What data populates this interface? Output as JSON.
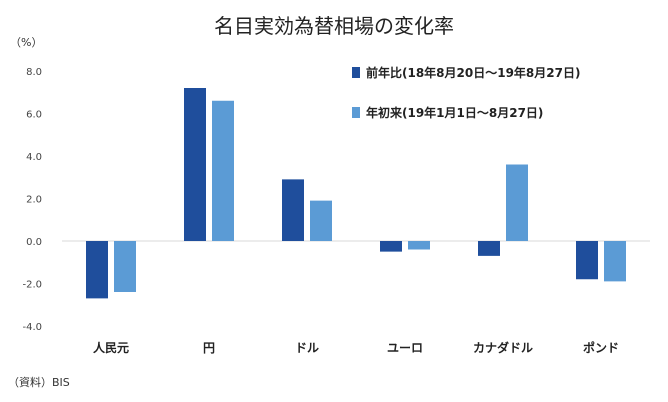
{
  "chart_data": {
    "type": "bar",
    "title": "名目実効為替相場の変化率",
    "unit": "（%）",
    "source": "（資料）BIS",
    "categories": [
      "人民元",
      "円",
      "ドル",
      "ユーロ",
      "カナダドル",
      "ポンド"
    ],
    "series": [
      {
        "name": "前年比(18年8月20日～19年8月27日)",
        "color": "#1f4e9c",
        "values": [
          -2.7,
          7.2,
          2.9,
          -0.5,
          -0.7,
          -1.8
        ]
      },
      {
        "name": "年初来(19年1月1日～8月27日)",
        "color": "#5b9bd5",
        "values": [
          -2.4,
          6.6,
          1.9,
          -0.4,
          3.6,
          -1.9
        ]
      }
    ],
    "ylim": [
      -4.0,
      8.0
    ],
    "yticks": [
      "8.0",
      "6.0",
      "4.0",
      "2.0",
      "0.0",
      "-2.0",
      "-4.0"
    ],
    "ytick_values": [
      8,
      6,
      4,
      2,
      0,
      -2,
      -4
    ],
    "grid": false,
    "legend_position": "top-right"
  }
}
